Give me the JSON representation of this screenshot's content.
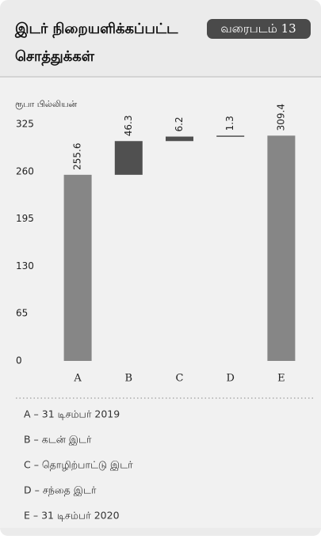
{
  "chart_data": {
    "type": "waterfall",
    "title": "இடர் நிறையளிக்கப்பட்ட",
    "title_line2": "சொத்துக்கள்",
    "badge": "வரைபடம் 13",
    "y_label": "ரூபா பில்லியன்",
    "categories": [
      "A",
      "B",
      "C",
      "D",
      "E"
    ],
    "values": [
      255.6,
      46.3,
      6.2,
      1.3,
      309.4
    ],
    "measure": [
      "absolute",
      "relative",
      "relative",
      "relative",
      "total"
    ],
    "colors": [
      "#868686",
      "#505050",
      "#505050",
      "#505050",
      "#868686"
    ],
    "ylim": [
      0,
      325
    ],
    "yticks": [
      0,
      65,
      130,
      195,
      260,
      325
    ],
    "notes": [
      "A – 31 டிசம்பர் 2019",
      "B – கடன் இடர்",
      "C – தொழிற்பாட்டு இடர்",
      "D – சந்தை இடர்",
      "E – 31 டிசம்பர் 2020"
    ]
  }
}
